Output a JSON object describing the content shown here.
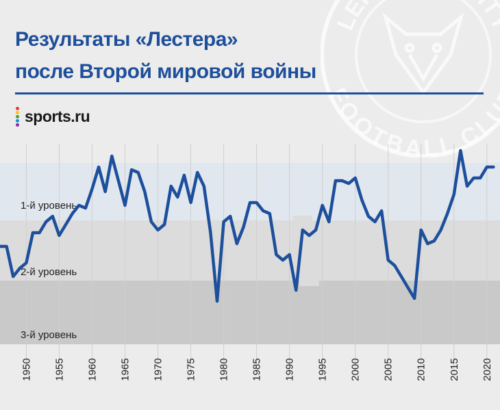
{
  "title_lines": [
    "Результаты «Лестера»",
    "после Второй мировой войны"
  ],
  "brand": {
    "name": "sports.ru",
    "dot_colors": [
      "#e53935",
      "#fbc02d",
      "#43a047",
      "#1e88e5",
      "#8e24aa"
    ]
  },
  "watermark": {
    "text_top": "LEICESTER CITY",
    "text_bottom": "FOOTBALL CLUB",
    "color": "#ffffff"
  },
  "colors": {
    "title": "#1e4f9a",
    "line": "#1d4f9c",
    "band_tier1": "#e1e7ef",
    "band_tier2": "#dcdcdc",
    "band_tier3": "#c9c9c9",
    "band_top": "#ebe7e7",
    "background": "#ececec"
  },
  "chart_data": {
    "type": "line",
    "title": "Результаты «Лестера» после Второй мировой войны",
    "xlabel": "",
    "ylabel": "",
    "xlim": [
      1946,
      2022
    ],
    "x_ticks": [
      "1950",
      "1955",
      "1960",
      "1965",
      "1970",
      "1975",
      "1980",
      "1985",
      "1990",
      "1995",
      "2000",
      "2005",
      "2010",
      "2015",
      "2020"
    ],
    "tier_labels": [
      "1-й уровень",
      "2-й уровень",
      "3-й уровень"
    ],
    "y_ticks": [],
    "grid": "vertical",
    "legend": "none",
    "series": [
      {
        "x": [
          1946,
          1947,
          1948,
          1949,
          1950,
          1951,
          1952,
          1953,
          1954,
          1955,
          1956,
          1957,
          1958,
          1959,
          1960,
          1961,
          1962,
          1963,
          1964,
          1965,
          1966,
          1967,
          1968,
          1969,
          1970,
          1971,
          1972,
          1973,
          1974,
          1975,
          1976,
          1977,
          1978,
          1979,
          1980,
          1981,
          1982,
          1983,
          1984,
          1985,
          1986,
          1987,
          1988,
          1989,
          1990,
          1991,
          1992,
          1993,
          1994,
          1995,
          1996,
          1997,
          1998,
          1999,
          2000,
          2001,
          2002,
          2003,
          2004,
          2005,
          2006,
          2007,
          2008,
          2009,
          2010,
          2011,
          2012,
          2013,
          2014,
          2015,
          2016,
          2017,
          2018,
          2019,
          2020,
          2021
        ],
        "y": [
          36,
          36,
          25,
          28,
          30,
          41,
          41,
          45,
          47,
          40,
          44,
          48,
          51,
          50,
          57,
          65,
          56,
          69,
          60,
          51,
          64,
          63,
          56,
          45,
          42,
          44,
          58,
          54,
          62,
          52,
          63,
          58,
          41,
          16,
          45,
          47,
          37,
          43,
          52,
          52,
          49,
          48,
          33,
          31,
          33,
          20,
          42,
          40,
          42,
          51,
          45,
          60,
          60,
          59,
          61,
          53,
          47,
          45,
          49,
          31,
          29,
          25,
          21,
          17,
          42,
          37,
          38,
          42,
          48,
          55,
          71,
          58,
          61,
          61,
          65,
          65
        ]
      }
    ]
  }
}
